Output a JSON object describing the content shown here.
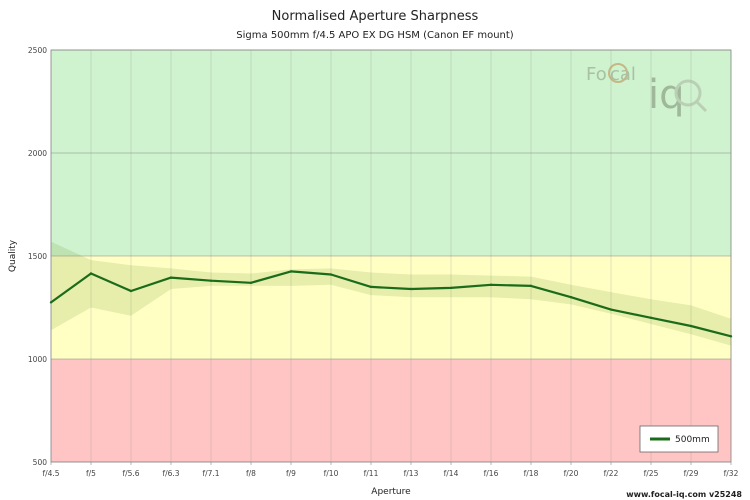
{
  "chart_data": {
    "type": "line",
    "title": "Normalised Aperture Sharpness",
    "subtitle": "Sigma 500mm f/4.5 APO EX DG HSM (Canon EF mount)",
    "xlabel": "Aperture",
    "ylabel": "Quality",
    "categories": [
      "f/4.5",
      "f/5",
      "f/5.6",
      "f/6.3",
      "f/7.1",
      "f/8",
      "f/9",
      "f/10",
      "f/11",
      "f/13",
      "f/14",
      "f/16",
      "f/18",
      "f/20",
      "f/22",
      "f/25",
      "f/29",
      "f/32"
    ],
    "ylim": [
      500,
      2500
    ],
    "yticks": [
      "500",
      "1000",
      "1500",
      "2000",
      "2500"
    ],
    "bands": [
      {
        "from": 500,
        "to": 1000,
        "color": "#ffc4c4"
      },
      {
        "from": 1000,
        "to": 1500,
        "color": "#ffffc4"
      },
      {
        "from": 1500,
        "to": 2500,
        "color": "#cff2cf"
      }
    ],
    "series": [
      {
        "name": "500mm",
        "color": "#1a6b1a",
        "values": [
          1275,
          1415,
          1330,
          1395,
          1380,
          1370,
          1425,
          1410,
          1350,
          1340,
          1345,
          1360,
          1355,
          1300,
          1240,
          1200,
          1160,
          1110
        ],
        "range_upper": [
          1570,
          1480,
          1455,
          1440,
          1420,
          1415,
          1435,
          1440,
          1420,
          1410,
          1410,
          1405,
          1400,
          1360,
          1325,
          1290,
          1260,
          1195
        ],
        "range_lower": [
          1140,
          1250,
          1210,
          1340,
          1355,
          1355,
          1355,
          1360,
          1310,
          1300,
          1300,
          1300,
          1290,
          1265,
          1220,
          1170,
          1120,
          1065
        ]
      }
    ],
    "legend": {
      "position": "bottom-right",
      "label": "500mm"
    },
    "grid": true,
    "watermark": {
      "text_left": "Fo",
      "text_mid": "cal",
      "text_big": "iq"
    },
    "footer": "www.focal-iq.com  v25248"
  }
}
